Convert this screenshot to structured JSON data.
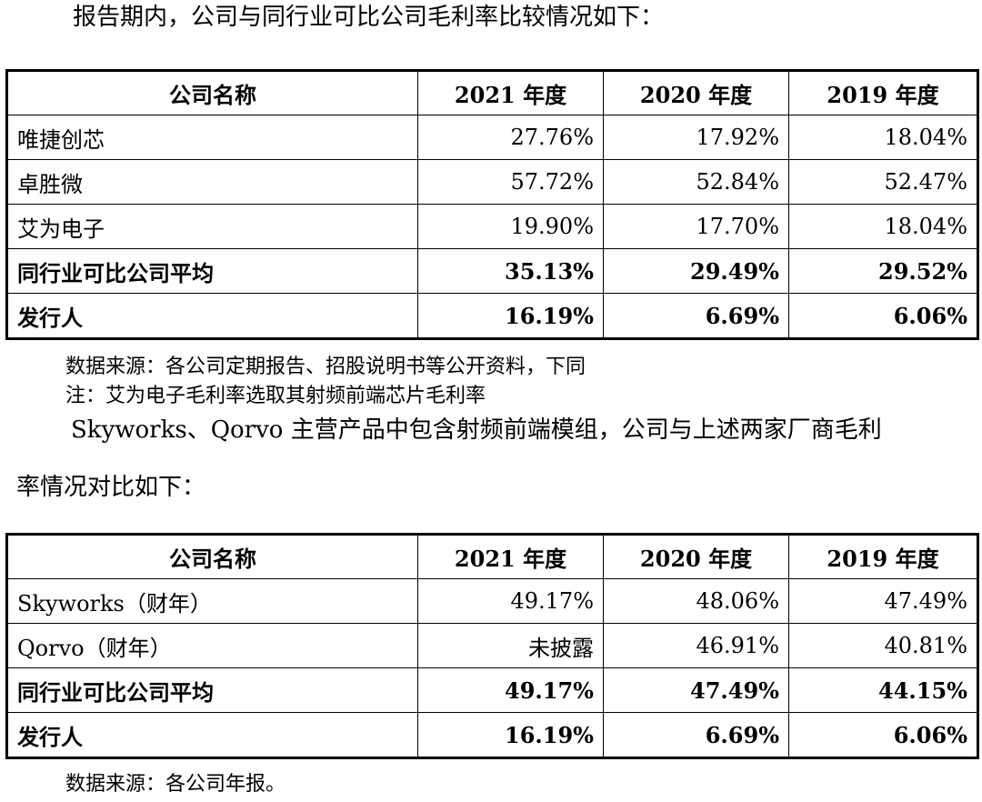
{
  "intro_text": "报告期内，公司与同行业可比公司毛利率比较情况如下：",
  "table1": {
    "headers": [
      "公司名称",
      "2021 年度",
      "2020 年度",
      "2019 年度"
    ],
    "rows": [
      {
        "name": "唯捷创芯",
        "v2021": "27.76%",
        "v2020": "17.92%",
        "v2019": "18.04%",
        "bold": false
      },
      {
        "name": "卓胜微",
        "v2021": "57.72%",
        "v2020": "52.84%",
        "v2019": "52.47%",
        "bold": false
      },
      {
        "name": "艾为电子",
        "v2021": "19.90%",
        "v2020": "17.70%",
        "v2019": "18.04%",
        "bold": false
      },
      {
        "name": "同行业可比公司平均",
        "v2021": "35.13%",
        "v2020": "29.49%",
        "v2019": "29.52%",
        "bold": true
      },
      {
        "name": "发行人",
        "v2021": "16.19%",
        "v2020": "6.69%",
        "v2019": "6.06%",
        "bold": true
      }
    ]
  },
  "source_note1": "数据来源：各公司定期报告、招股说明书等公开资料，下同",
  "note1": "注：艾为电子毛利率选取其射频前端芯片毛利率",
  "para2_line1": "Skyworks、Qorvo 主营产品中包含射频前端模组，公司与上述两家厂商毛利",
  "para2_line2": "率情况对比如下：",
  "table2": {
    "headers": [
      "公司名称",
      "2021 年度",
      "2020 年度",
      "2019 年度"
    ],
    "rows": [
      {
        "name": "Skyworks（财年）",
        "v2021": "49.17%",
        "v2020": "48.06%",
        "v2019": "47.49%",
        "bold": false
      },
      {
        "name": "Qorvo（财年）",
        "v2021": "未披露",
        "v2020": "46.91%",
        "v2019": "40.81%",
        "bold": false
      },
      {
        "name": "同行业可比公司平均",
        "v2021": "49.17%",
        "v2020": "47.49%",
        "v2019": "44.15%",
        "bold": true
      },
      {
        "name": "发行人",
        "v2021": "16.19%",
        "v2020": "6.69%",
        "v2019": "6.06%",
        "bold": true
      }
    ]
  },
  "source_note2": "数据来源：各公司年报。"
}
